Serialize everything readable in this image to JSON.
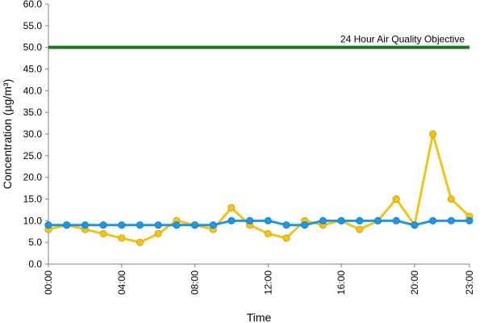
{
  "chart_data": {
    "type": "line",
    "xlabel": "Time",
    "ylabel": "Concentration (µg/m³)",
    "ylim": [
      0,
      60
    ],
    "y_ticks": [
      "0.0",
      "5.0",
      "10.0",
      "15.0",
      "20.0",
      "25.0",
      "30.0",
      "35.0",
      "40.0",
      "45.0",
      "50.0",
      "55.0",
      "60.0"
    ],
    "x_range": [
      0,
      23
    ],
    "x_ticks": [
      {
        "hour": 0,
        "label": "00:00"
      },
      {
        "hour": 4,
        "label": "04:00"
      },
      {
        "hour": 8,
        "label": "08:00"
      },
      {
        "hour": 12,
        "label": "12:00"
      },
      {
        "hour": 16,
        "label": "16:00"
      },
      {
        "hour": 20,
        "label": "20:00"
      },
      {
        "hour": 23,
        "label": "23:00"
      }
    ],
    "grid": false,
    "legend": "none",
    "x": [
      0,
      1,
      2,
      3,
      4,
      5,
      6,
      7,
      8,
      9,
      10,
      11,
      12,
      13,
      14,
      15,
      16,
      17,
      18,
      19,
      20,
      21,
      22,
      23
    ],
    "series": [
      {
        "color": "#f0c419",
        "values": [
          8,
          9,
          8,
          7,
          6,
          5,
          7,
          10,
          9,
          8,
          13,
          9,
          7,
          6,
          10,
          9,
          10,
          8,
          10,
          15,
          9,
          30,
          15,
          11
        ]
      },
      {
        "color": "#2196e0",
        "values": [
          9,
          9,
          9,
          9,
          9,
          9,
          9,
          9,
          9,
          9,
          10,
          10,
          10,
          9,
          9,
          10,
          10,
          10,
          10,
          10,
          9,
          10,
          10,
          10
        ]
      }
    ],
    "reference_line": {
      "value": 50,
      "label": "24 Hour Air Quality Objective",
      "color": "#1a7a1a"
    }
  }
}
